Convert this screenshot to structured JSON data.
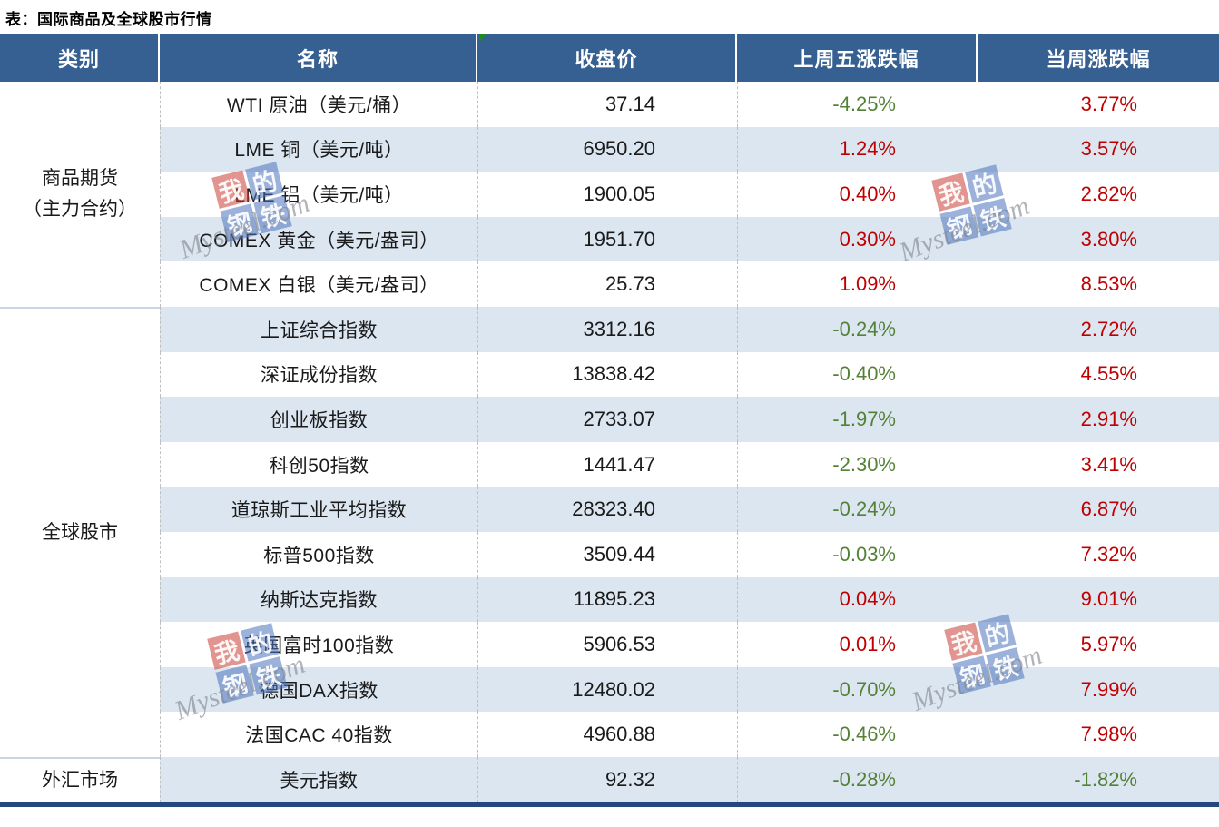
{
  "title": "表：国际商品及全球股市行情",
  "colors": {
    "header_bg": "#366092",
    "header_text": "#FFFFFF",
    "stripe": "#DCE6F1",
    "row_white": "#FFFFFF",
    "up": "#C00000",
    "down": "#538135",
    "bottom_border": "#24477E",
    "flag_green": "#1F8A1F"
  },
  "watermark": {
    "tiles": [
      "我",
      "的",
      "钢",
      "铁"
    ],
    "brand": "Mysteel.com"
  },
  "table": {
    "headers": [
      "类别",
      "名称",
      "收盘价",
      "上周五涨跌幅",
      "当周涨跌幅"
    ],
    "groups": [
      {
        "category_lines": [
          "商品期货",
          "（主力合约）"
        ],
        "rows": [
          {
            "name": "WTI 原油（美元/桶）",
            "close": "37.14",
            "last_friday_change": "-4.25%",
            "weekly_change": "3.77%"
          },
          {
            "name": "LME 铜（美元/吨）",
            "close": "6950.20",
            "last_friday_change": "1.24%",
            "weekly_change": "3.57%"
          },
          {
            "name": "LME 铝（美元/吨）",
            "close": "1900.05",
            "last_friday_change": "0.40%",
            "weekly_change": "2.82%"
          },
          {
            "name": "COMEX 黄金（美元/盎司）",
            "close": "1951.70",
            "last_friday_change": "0.30%",
            "weekly_change": "3.80%"
          },
          {
            "name": "COMEX 白银（美元/盎司）",
            "close": "25.73",
            "last_friday_change": "1.09%",
            "weekly_change": "8.53%"
          }
        ]
      },
      {
        "category_lines": [
          "全球股市"
        ],
        "rows": [
          {
            "name": "上证综合指数",
            "close": "3312.16",
            "last_friday_change": "-0.24%",
            "weekly_change": "2.72%"
          },
          {
            "name": "深证成份指数",
            "close": "13838.42",
            "last_friday_change": "-0.40%",
            "weekly_change": "4.55%"
          },
          {
            "name": "创业板指数",
            "close": "2733.07",
            "last_friday_change": "-1.97%",
            "weekly_change": "2.91%"
          },
          {
            "name": "科创50指数",
            "close": "1441.47",
            "last_friday_change": "-2.30%",
            "weekly_change": "3.41%"
          },
          {
            "name": "道琼斯工业平均指数",
            "close": "28323.40",
            "last_friday_change": "-0.24%",
            "weekly_change": "6.87%"
          },
          {
            "name": "标普500指数",
            "close": "3509.44",
            "last_friday_change": "-0.03%",
            "weekly_change": "7.32%"
          },
          {
            "name": "纳斯达克指数",
            "close": "11895.23",
            "last_friday_change": "0.04%",
            "weekly_change": "9.01%"
          },
          {
            "name": "英国富时100指数",
            "close": "5906.53",
            "last_friday_change": "0.01%",
            "weekly_change": "5.97%"
          },
          {
            "name": "德国DAX指数",
            "close": "12480.02",
            "last_friday_change": "-0.70%",
            "weekly_change": "7.99%"
          },
          {
            "name": "法国CAC 40指数",
            "close": "4960.88",
            "last_friday_change": "-0.46%",
            "weekly_change": "7.98%"
          }
        ]
      },
      {
        "category_lines": [
          "外汇市场"
        ],
        "rows": [
          {
            "name": "美元指数",
            "close": "92.32",
            "last_friday_change": "-0.28%",
            "weekly_change": "-1.82%"
          }
        ]
      }
    ]
  },
  "chart_data": {
    "type": "table",
    "title": "表：国际商品及全球股市行情",
    "columns": [
      "类别",
      "名称",
      "收盘价",
      "上周五涨跌幅",
      "当周涨跌幅"
    ],
    "rows": [
      [
        "商品期货（主力合约）",
        "WTI 原油（美元/桶）",
        37.14,
        -4.25,
        3.77
      ],
      [
        "商品期货（主力合约）",
        "LME 铜（美元/吨）",
        6950.2,
        1.24,
        3.57
      ],
      [
        "商品期货（主力合约）",
        "LME 铝（美元/吨）",
        1900.05,
        0.4,
        2.82
      ],
      [
        "商品期货（主力合约）",
        "COMEX 黄金（美元/盎司）",
        1951.7,
        0.3,
        3.8
      ],
      [
        "商品期货（主力合约）",
        "COMEX 白银（美元/盎司）",
        25.73,
        1.09,
        8.53
      ],
      [
        "全球股市",
        "上证综合指数",
        3312.16,
        -0.24,
        2.72
      ],
      [
        "全球股市",
        "深证成份指数",
        13838.42,
        -0.4,
        4.55
      ],
      [
        "全球股市",
        "创业板指数",
        2733.07,
        -1.97,
        2.91
      ],
      [
        "全球股市",
        "科创50指数",
        1441.47,
        -2.3,
        3.41
      ],
      [
        "全球股市",
        "道琼斯工业平均指数",
        28323.4,
        -0.24,
        6.87
      ],
      [
        "全球股市",
        "标普500指数",
        3509.44,
        -0.03,
        7.32
      ],
      [
        "全球股市",
        "纳斯达克指数",
        11895.23,
        0.04,
        9.01
      ],
      [
        "全球股市",
        "英国富时100指数",
        5906.53,
        0.01,
        5.97
      ],
      [
        "全球股市",
        "德国DAX指数",
        12480.02,
        -0.7,
        7.99
      ],
      [
        "全球股市",
        "法国CAC 40指数",
        4960.88,
        -0.46,
        7.98
      ],
      [
        "外汇市场",
        "美元指数",
        92.32,
        -0.28,
        -1.82
      ]
    ],
    "notes": "percent columns: negative values rendered green, positive red; units are percent"
  }
}
